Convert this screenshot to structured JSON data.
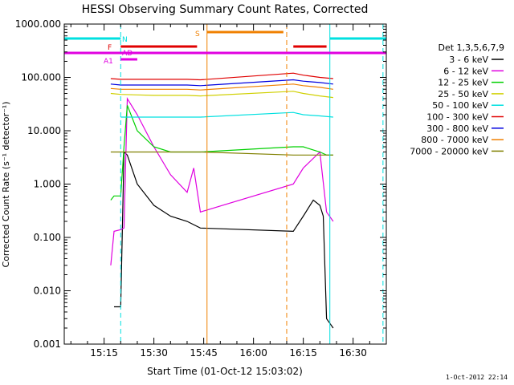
{
  "chart_data": {
    "type": "line",
    "title": "HESSI Observing Summary Count Rates, Corrected",
    "xlabel": "Start Time (01-Oct-12 15:03:02)",
    "ylabel": "Corrected Count Rate (s⁻¹ detector⁻¹)",
    "y_scale": "log",
    "ylim": [
      0.001,
      1000
    ],
    "xlim": [
      "15:03",
      "16:40"
    ],
    "x_ticks": [
      "15:15",
      "15:30",
      "15:45",
      "16:00",
      "16:15",
      "16:30"
    ],
    "y_ticks": [
      "0.001",
      "0.010",
      "0.100",
      "1.000",
      "10.000",
      "100.000",
      "1000.000"
    ],
    "legend": {
      "title": "Det 1,3,5,6,7,9",
      "placement": "right",
      "entries": [
        {
          "label": "3 - 6 keV",
          "color": "#000000"
        },
        {
          "label": "6 - 12 keV",
          "color": "#e000e0"
        },
        {
          "label": "12 - 25 keV",
          "color": "#00d000"
        },
        {
          "label": "25 - 50 keV",
          "color": "#d0d000"
        },
        {
          "label": "50 - 100 keV",
          "color": "#00e0e0"
        },
        {
          "label": "100 - 300 keV",
          "color": "#e00000"
        },
        {
          "label": "300 - 800 keV",
          "color": "#0000e0"
        },
        {
          "label": "800 - 7000 keV",
          "color": "#f08000"
        },
        {
          "label": "7000 - 20000 keV",
          "color": "#808000"
        }
      ]
    },
    "flags": [
      {
        "label": "N",
        "color": "#00e0e0",
        "segments": [
          [
            "15:03",
            "15:20"
          ],
          [
            "16:23",
            "16:40"
          ]
        ]
      },
      {
        "label": "S",
        "color": "#f08000",
        "segments": [
          [
            "15:46",
            "16:09"
          ]
        ]
      },
      {
        "label": "F",
        "color": "#e00000",
        "segments": [
          [
            "15:20",
            "15:43"
          ],
          [
            "16:12",
            "16:22"
          ]
        ]
      },
      {
        "label": "AD",
        "color": "#e000e0",
        "segments": [
          [
            "15:20",
            "15:25"
          ]
        ]
      },
      {
        "label": "A1",
        "color": "#e000e0",
        "segments": [
          [
            "15:03",
            "16:40"
          ]
        ]
      }
    ],
    "vertical_markers": [
      {
        "time": "15:20",
        "color": "#00e0e0",
        "style": "dashed"
      },
      {
        "time": "15:46",
        "color": "#f08000",
        "style": "solid"
      },
      {
        "time": "16:10",
        "color": "#f08000",
        "style": "dashed"
      },
      {
        "time": "16:23",
        "color": "#00e0e0",
        "style": "solid"
      },
      {
        "time": "16:39",
        "color": "#00e0e0",
        "style": "dashed"
      }
    ],
    "series": [
      {
        "name": "3 - 6 keV",
        "color": "#000000",
        "x": [
          "15:18",
          "15:20",
          "15:21",
          "15:22",
          "15:25",
          "15:30",
          "15:35",
          "15:40",
          "15:44",
          "16:12",
          "16:15",
          "16:18",
          "16:20",
          "16:21",
          "16:22",
          "16:24"
        ],
        "values": [
          0.005,
          0.005,
          4,
          3.5,
          1.0,
          0.4,
          0.25,
          0.2,
          0.15,
          0.13,
          0.25,
          0.5,
          0.4,
          0.25,
          0.003,
          0.002
        ]
      },
      {
        "name": "6 - 12 keV",
        "color": "#e000e0",
        "x": [
          "15:17",
          "15:18",
          "15:20",
          "15:21",
          "15:22",
          "15:25",
          "15:30",
          "15:35",
          "15:40",
          "15:42",
          "15:44",
          "16:12",
          "16:15",
          "16:20",
          "16:22",
          "16:24"
        ],
        "values": [
          0.03,
          0.13,
          0.14,
          0.15,
          40,
          20,
          5,
          1.5,
          0.7,
          2,
          0.3,
          1.0,
          2,
          4,
          0.3,
          0.2
        ]
      },
      {
        "name": "12 - 25 keV",
        "color": "#00d000",
        "x": [
          "15:17",
          "15:18",
          "15:20",
          "15:21",
          "15:22",
          "15:25",
          "15:30",
          "15:35",
          "15:44",
          "16:12",
          "16:15",
          "16:20",
          "16:22",
          "16:24"
        ],
        "values": [
          0.5,
          0.6,
          0.6,
          5,
          30,
          10,
          5,
          4,
          4,
          5,
          5,
          4,
          3.5,
          3.5
        ]
      },
      {
        "name": "25 - 50 keV",
        "color": "#d0d000",
        "x": [
          "15:17",
          "15:20",
          "15:25",
          "15:30",
          "15:35",
          "15:40",
          "15:44",
          "16:12",
          "16:15",
          "16:20",
          "16:24"
        ],
        "values": [
          50,
          48,
          47,
          46,
          46,
          46,
          45,
          55,
          50,
          45,
          42
        ]
      },
      {
        "name": "50 - 100 keV",
        "color": "#00e0e0",
        "x": [
          "15:20",
          "15:25",
          "15:30",
          "15:35",
          "15:40",
          "15:44",
          "16:12",
          "16:15",
          "16:20",
          "16:24"
        ],
        "values": [
          18,
          18,
          18,
          18,
          18,
          18,
          22,
          20,
          19,
          18
        ]
      },
      {
        "name": "100 - 300 keV",
        "color": "#e00000",
        "x": [
          "15:17",
          "15:20",
          "15:25",
          "15:30",
          "15:35",
          "15:40",
          "15:44",
          "16:12",
          "16:15",
          "16:20",
          "16:24"
        ],
        "values": [
          95,
          92,
          92,
          92,
          92,
          92,
          90,
          120,
          110,
          100,
          95
        ]
      },
      {
        "name": "300 - 800 keV",
        "color": "#0000e0",
        "x": [
          "15:17",
          "15:20",
          "15:25",
          "15:30",
          "15:35",
          "15:40",
          "15:44",
          "16:12",
          "16:15",
          "16:20",
          "16:24"
        ],
        "values": [
          75,
          72,
          72,
          72,
          72,
          72,
          70,
          90,
          85,
          80,
          75
        ]
      },
      {
        "name": "800 - 7000 keV",
        "color": "#f08000",
        "x": [
          "15:17",
          "15:20",
          "15:25",
          "15:30",
          "15:35",
          "15:40",
          "15:44",
          "16:12",
          "16:15",
          "16:20",
          "16:24"
        ],
        "values": [
          62,
          60,
          60,
          60,
          60,
          60,
          58,
          75,
          70,
          65,
          60
        ]
      },
      {
        "name": "7000 - 20000 keV",
        "color": "#808000",
        "x": [
          "15:17",
          "15:18",
          "15:20",
          "15:25",
          "15:30",
          "15:35",
          "15:40",
          "15:44",
          "16:12",
          "16:15",
          "16:20",
          "16:24"
        ],
        "values": [
          4,
          4,
          4,
          4,
          4,
          4,
          4,
          4,
          3.5,
          3.5,
          3.5,
          3.5
        ]
      }
    ]
  },
  "footer_timestamp": "1-Oct-2012 22:14"
}
